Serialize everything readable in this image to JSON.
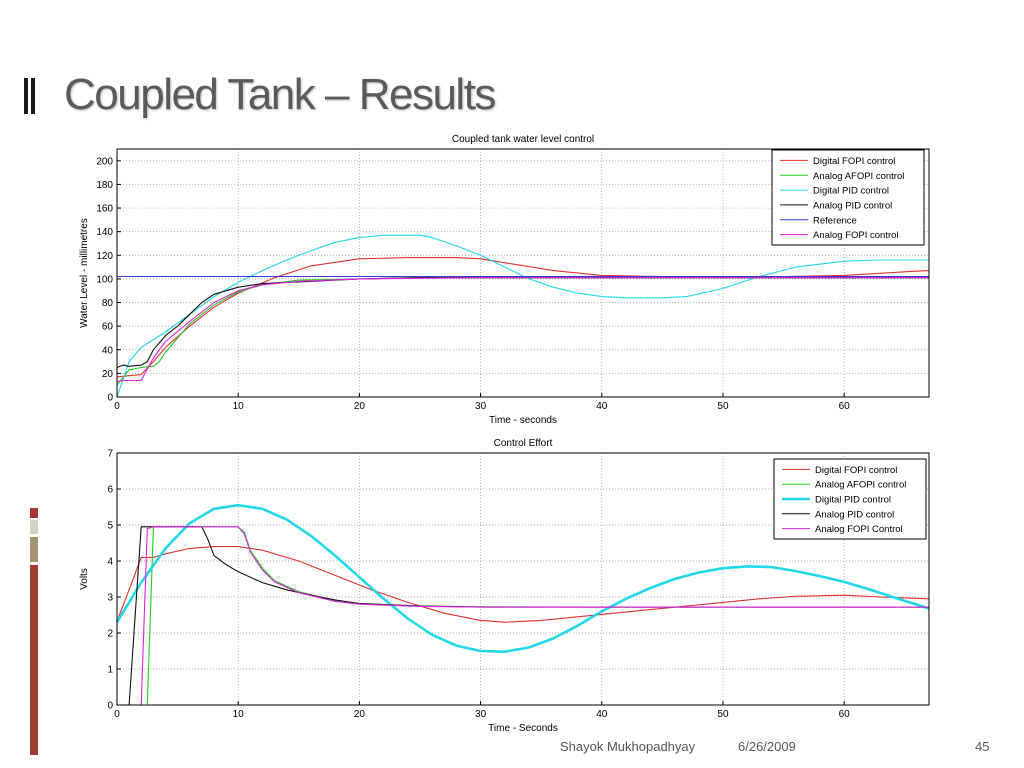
{
  "slide": {
    "title": "Coupled Tank – Results",
    "author": "Shayok Mukhopadhyay",
    "date": "6/26/2009",
    "page_number": "45"
  },
  "colors": {
    "accent_dark": "#a33a2b",
    "accent_tan": "#a89370",
    "accent_light": "#d9d3c6"
  },
  "chart_data": [
    {
      "type": "line",
      "title": "Coupled tank water level control",
      "xlabel": "Time - seconds",
      "ylabel": "Water Level - millimetres",
      "xlim": [
        0,
        67
      ],
      "ylim": [
        0,
        210
      ],
      "xticks": [
        0,
        10,
        20,
        30,
        40,
        50,
        60
      ],
      "yticks": [
        0,
        20,
        40,
        60,
        80,
        100,
        120,
        140,
        160,
        180,
        200
      ],
      "grid": true,
      "legend_position": "top-right",
      "series": [
        {
          "name": "Digital FOPI control",
          "color": "#e03030",
          "x": [
            0,
            1,
            2,
            3,
            4,
            6,
            8,
            10,
            13,
            16,
            20,
            24,
            28,
            30,
            33,
            36,
            40,
            45,
            50,
            55,
            60,
            65,
            67
          ],
          "y": [
            17,
            18,
            19,
            30,
            42,
            60,
            76,
            88,
            101,
            111,
            117,
            118,
            118,
            117,
            112,
            107,
            103,
            102,
            102,
            102,
            103,
            106,
            107
          ]
        },
        {
          "name": "Analog AFOPI control",
          "color": "#22cc22",
          "x": [
            0,
            1,
            2,
            3,
            3.5,
            4,
            5,
            6,
            8,
            10,
            12,
            15,
            20,
            25,
            30,
            40,
            50,
            60,
            67
          ],
          "y": [
            10,
            23,
            25,
            26,
            30,
            38,
            50,
            62,
            78,
            89,
            95,
            99,
            100,
            101,
            101,
            101,
            101,
            101,
            101
          ]
        },
        {
          "name": "Digital PID control",
          "color": "#22d8e8",
          "x": [
            0,
            1,
            2,
            4,
            6,
            8,
            10,
            12,
            14,
            16,
            18,
            20,
            22,
            24,
            25,
            26,
            28,
            30,
            32,
            34,
            36,
            38,
            40,
            42,
            45,
            47,
            50,
            53,
            56,
            60,
            63,
            67
          ],
          "y": [
            0,
            30,
            42,
            55,
            70,
            85,
            97,
            107,
            116,
            124,
            131,
            135,
            137,
            137,
            137,
            135,
            128,
            120,
            110,
            100,
            93,
            88,
            85,
            84,
            84,
            85,
            92,
            102,
            110,
            115,
            116,
            116
          ]
        },
        {
          "name": "Analog PID control",
          "color": "#111111",
          "x": [
            0,
            0.5,
            1,
            2,
            2.5,
            3,
            4,
            5,
            6,
            7,
            8,
            9,
            10,
            12,
            14,
            16,
            20,
            25,
            30,
            40,
            50,
            60,
            67
          ],
          "y": [
            25,
            27,
            26,
            27,
            30,
            40,
            52,
            60,
            70,
            80,
            87,
            90,
            93,
            96,
            97,
            98,
            100,
            101,
            101,
            101,
            101,
            101,
            101
          ]
        },
        {
          "name": "Reference",
          "color": "#3a3ad0",
          "x": [
            0,
            67
          ],
          "y": [
            102,
            102
          ]
        },
        {
          "name": "Analog FOPI control",
          "color": "#e020e0",
          "x": [
            0,
            0.5,
            1,
            2,
            2.3,
            3,
            4,
            6,
            8,
            10,
            12,
            15,
            20,
            30,
            40,
            50,
            60,
            67
          ],
          "y": [
            13,
            14,
            14,
            14,
            20,
            33,
            47,
            64,
            80,
            90,
            95,
            98,
            100,
            101,
            101,
            101,
            101,
            101
          ]
        }
      ]
    },
    {
      "type": "line",
      "title": "Control Effort",
      "xlabel": "Time - Seconds",
      "ylabel": "Volts",
      "xlim": [
        0,
        67
      ],
      "ylim": [
        0,
        7
      ],
      "xticks": [
        0,
        10,
        20,
        30,
        40,
        50,
        60
      ],
      "yticks": [
        0,
        1,
        2,
        3,
        4,
        5,
        6,
        7
      ],
      "grid": true,
      "legend_position": "top-right",
      "series": [
        {
          "name": "Digital FOPI control",
          "color": "#e03030",
          "x": [
            0,
            0.2,
            1,
            2,
            3,
            4,
            6,
            8,
            10,
            12,
            15,
            18,
            21,
            24,
            27,
            30,
            32,
            35,
            38,
            41,
            44,
            47,
            50,
            53,
            56,
            60,
            63,
            67
          ],
          "y": [
            2.3,
            2.5,
            3.2,
            4.1,
            4.1,
            4.2,
            4.35,
            4.4,
            4.4,
            4.3,
            4.0,
            3.6,
            3.2,
            2.85,
            2.55,
            2.35,
            2.3,
            2.35,
            2.45,
            2.55,
            2.65,
            2.75,
            2.85,
            2.95,
            3.02,
            3.05,
            3.0,
            2.95
          ]
        },
        {
          "name": "Analog AFOPI control",
          "color": "#22cc22",
          "x": [
            0,
            2.5,
            3,
            10,
            10.5,
            11,
            12,
            13,
            15,
            18,
            20,
            25,
            30,
            40,
            50,
            60,
            67
          ],
          "y": [
            0,
            0,
            4.95,
            4.95,
            4.8,
            4.3,
            3.8,
            3.45,
            3.15,
            2.9,
            2.82,
            2.75,
            2.73,
            2.72,
            2.72,
            2.72,
            2.72
          ]
        },
        {
          "name": "Digital PID control",
          "color": "#22d8e8",
          "x": [
            0,
            2,
            4,
            6,
            8,
            10,
            12,
            14,
            16,
            18,
            20,
            22,
            24,
            26,
            28,
            30,
            32,
            34,
            36,
            38,
            40,
            42,
            44,
            46,
            48,
            50,
            52,
            54,
            56,
            58,
            60,
            62,
            64,
            67
          ],
          "y": [
            2.3,
            3.4,
            4.35,
            5.05,
            5.45,
            5.55,
            5.45,
            5.15,
            4.7,
            4.15,
            3.55,
            2.95,
            2.4,
            1.95,
            1.65,
            1.5,
            1.48,
            1.6,
            1.85,
            2.2,
            2.6,
            2.95,
            3.25,
            3.5,
            3.68,
            3.8,
            3.85,
            3.83,
            3.72,
            3.58,
            3.42,
            3.22,
            3.0,
            2.68
          ]
        },
        {
          "name": "Analog PID control",
          "color": "#111111",
          "x": [
            0,
            1,
            1.5,
            2,
            7,
            7.5,
            8,
            9,
            10,
            12,
            14,
            16,
            18,
            20,
            25,
            30,
            40,
            50,
            60,
            67
          ],
          "y": [
            0,
            0,
            2.5,
            4.95,
            4.95,
            4.6,
            4.15,
            3.9,
            3.7,
            3.4,
            3.2,
            3.05,
            2.92,
            2.82,
            2.75,
            2.72,
            2.72,
            2.72,
            2.72,
            2.72
          ]
        },
        {
          "name": "Analog FOPI Control",
          "color": "#e020e0",
          "x": [
            0,
            2,
            2.5,
            3,
            10,
            10.5,
            11,
            12,
            13,
            15,
            18,
            20,
            25,
            30,
            40,
            50,
            60,
            67
          ],
          "y": [
            0,
            0,
            4.9,
            4.95,
            4.95,
            4.75,
            4.25,
            3.75,
            3.42,
            3.12,
            2.88,
            2.8,
            2.74,
            2.72,
            2.72,
            2.72,
            2.72,
            2.72
          ]
        }
      ]
    }
  ]
}
